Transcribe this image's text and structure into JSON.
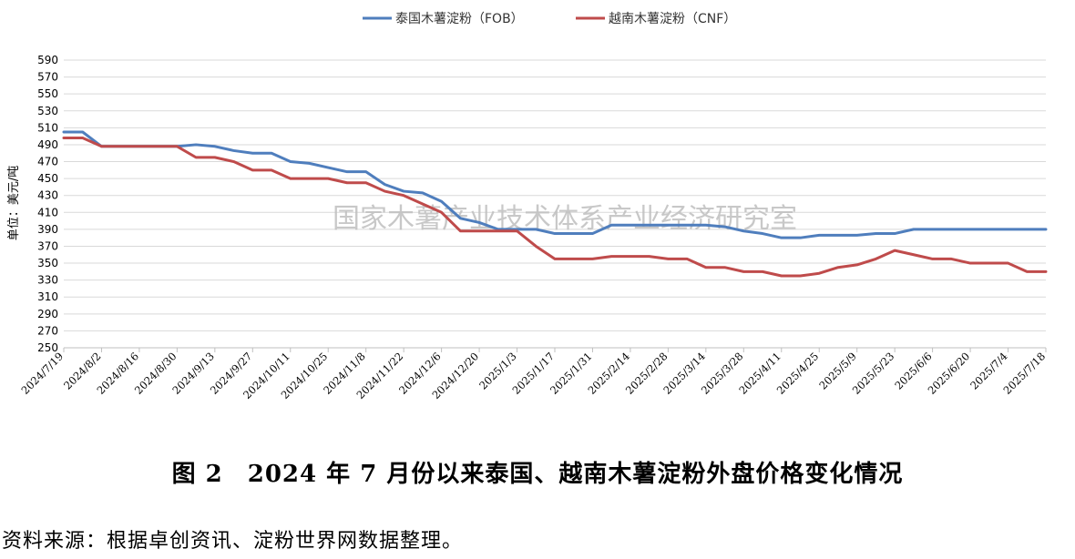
{
  "chart_data": {
    "type": "line",
    "ylabel": "单位：美元/吨",
    "ylim": [
      250,
      590
    ],
    "yticks": [
      250,
      270,
      290,
      310,
      330,
      350,
      370,
      390,
      410,
      430,
      450,
      470,
      490,
      510,
      530,
      550,
      570,
      590
    ],
    "x_tick_labels": [
      "2024/7/19",
      "2024/8/2",
      "2024/8/16",
      "2024/8/30",
      "2024/9/13",
      "2024/9/27",
      "2024/10/11",
      "2024/10/25",
      "2024/11/8",
      "2024/11/22",
      "2024/12/6",
      "2024/12/20",
      "2025/1/3",
      "2025/1/17",
      "2025/1/31",
      "2025/2/14",
      "2025/2/28",
      "2025/3/14",
      "2025/3/28",
      "2025/4/11",
      "2025/4/25",
      "2025/5/9",
      "2025/5/23",
      "2025/6/6",
      "2025/6/20",
      "2025/7/4",
      "2025/7/18"
    ],
    "weeks": 53,
    "grid": "horizontal",
    "legend_position": "top",
    "watermark": "国家木薯产业技术体系产业经济研究室",
    "series": [
      {
        "name": "泰国木薯淀粉（FOB）",
        "color": "#4F7EBD",
        "values": [
          505,
          505,
          488,
          488,
          488,
          488,
          488,
          490,
          488,
          483,
          480,
          480,
          470,
          468,
          463,
          458,
          458,
          443,
          435,
          433,
          423,
          403,
          398,
          390,
          390,
          390,
          385,
          385,
          385,
          395,
          395,
          395,
          395,
          395,
          395,
          393,
          388,
          385,
          380,
          380,
          383,
          383,
          383,
          385,
          385,
          390,
          390,
          390,
          390,
          390,
          390,
          390,
          390
        ]
      },
      {
        "name": "越南木薯淀粉（CNF）",
        "color": "#BF4B4B",
        "values": [
          498,
          498,
          488,
          488,
          488,
          488,
          488,
          475,
          475,
          470,
          460,
          460,
          450,
          450,
          450,
          445,
          445,
          435,
          430,
          420,
          410,
          388,
          388,
          388,
          388,
          370,
          355,
          355,
          355,
          358,
          358,
          358,
          355,
          355,
          345,
          345,
          340,
          340,
          335,
          335,
          338,
          345,
          348,
          355,
          365,
          360,
          355,
          355,
          350,
          350,
          350,
          340,
          340
        ]
      }
    ]
  },
  "caption": "图 2　2024 年 7 月份以来泰国、越南木薯淀粉外盘价格变化情况",
  "source": "资料来源：根据卓创资讯、淀粉世界网数据整理。"
}
